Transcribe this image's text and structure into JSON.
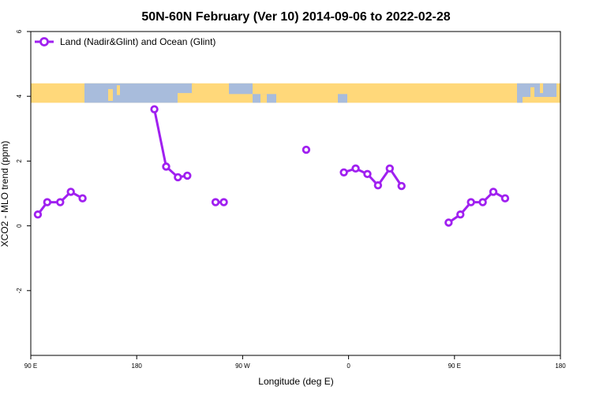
{
  "chart_data": {
    "type": "line",
    "title": "50N-60N February (Ver 10)   2014-09-06 to 2022-02-28",
    "xlabel": "Longitude (deg E)",
    "ylabel": "XCO2 - MLO trend (ppm)",
    "xlim": [
      90,
      540
    ],
    "ylim": [
      -4,
      6
    ],
    "x_ticks": [
      {
        "value": 90,
        "label": "90 E"
      },
      {
        "value": 180,
        "label": "180"
      },
      {
        "value": 270,
        "label": "90 W"
      },
      {
        "value": 360,
        "label": "0"
      },
      {
        "value": 450,
        "label": "90 E"
      },
      {
        "value": 540,
        "label": "180"
      }
    ],
    "y_ticks": [
      {
        "value": -2,
        "label": "-2"
      },
      {
        "value": 0,
        "label": "0"
      },
      {
        "value": 2,
        "label": "2"
      },
      {
        "value": 4,
        "label": "4"
      },
      {
        "value": 6,
        "label": "6"
      }
    ],
    "grid": false,
    "legend_position": "top-left",
    "map_band": {
      "ymin": 3.8,
      "ymax": 4.4,
      "ocean_color": "#a8bcdc",
      "land_color": "#ffd87a"
    },
    "series": [
      {
        "name": "Land (Nadir&Glint) and Ocean (Glint)",
        "color": "#a020f0",
        "segments": [
          [
            [
              96,
              0.35
            ],
            [
              104,
              0.73
            ],
            [
              115,
              0.73
            ],
            [
              124,
              1.05
            ],
            [
              134,
              0.85
            ]
          ],
          [
            [
              195,
              3.6
            ],
            [
              205,
              1.83
            ],
            [
              215,
              1.5
            ],
            [
              223,
              1.55
            ]
          ],
          [
            [
              247,
              0.73
            ],
            [
              254,
              0.73
            ]
          ],
          [
            [
              324,
              2.35
            ]
          ],
          [
            [
              356,
              1.65
            ],
            [
              366,
              1.77
            ],
            [
              376,
              1.6
            ],
            [
              385,
              1.25
            ],
            [
              395,
              1.77
            ],
            [
              405,
              1.23
            ]
          ],
          [
            [
              445,
              0.1
            ],
            [
              455,
              0.35
            ],
            [
              464,
              0.73
            ],
            [
              474,
              0.73
            ],
            [
              483,
              1.05
            ],
            [
              493,
              0.85
            ]
          ]
        ]
      }
    ]
  }
}
